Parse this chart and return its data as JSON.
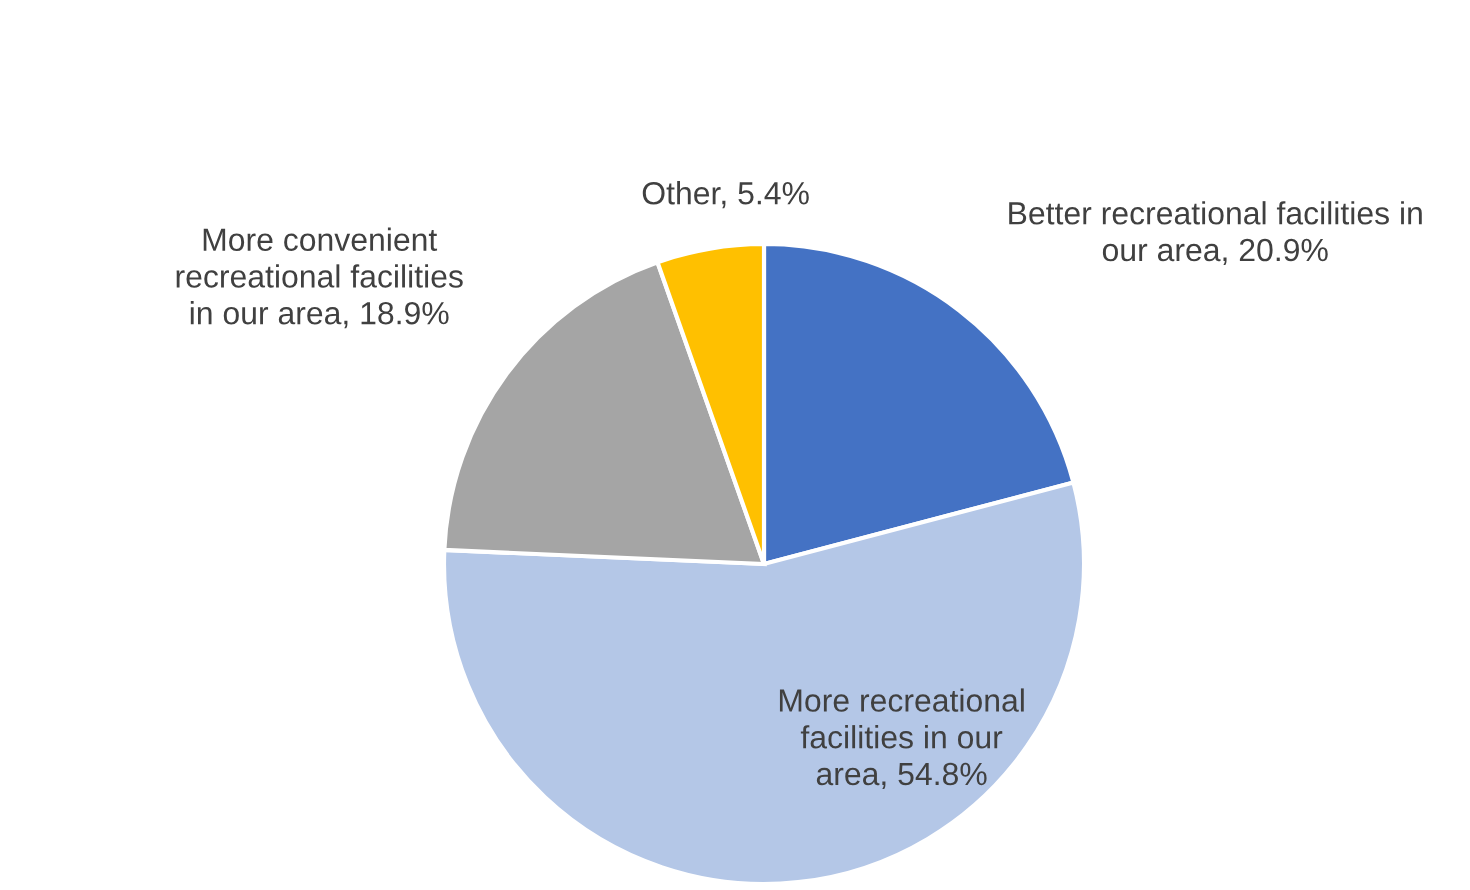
{
  "chart_data": {
    "type": "pie",
    "categories": [
      "Better recreational facilities in\nour area, 20.9%",
      "More recreational\nfacilities in our\narea, 54.8%",
      "More convenient\nrecreational facilities\nin our area, 18.9%",
      "Other, 5.4%"
    ],
    "values": [
      20.9,
      54.8,
      18.9,
      5.4
    ],
    "colors": [
      "#4472c4",
      "#b4c7e7",
      "#a5a5a5",
      "#ffc000"
    ],
    "legend": false
  }
}
